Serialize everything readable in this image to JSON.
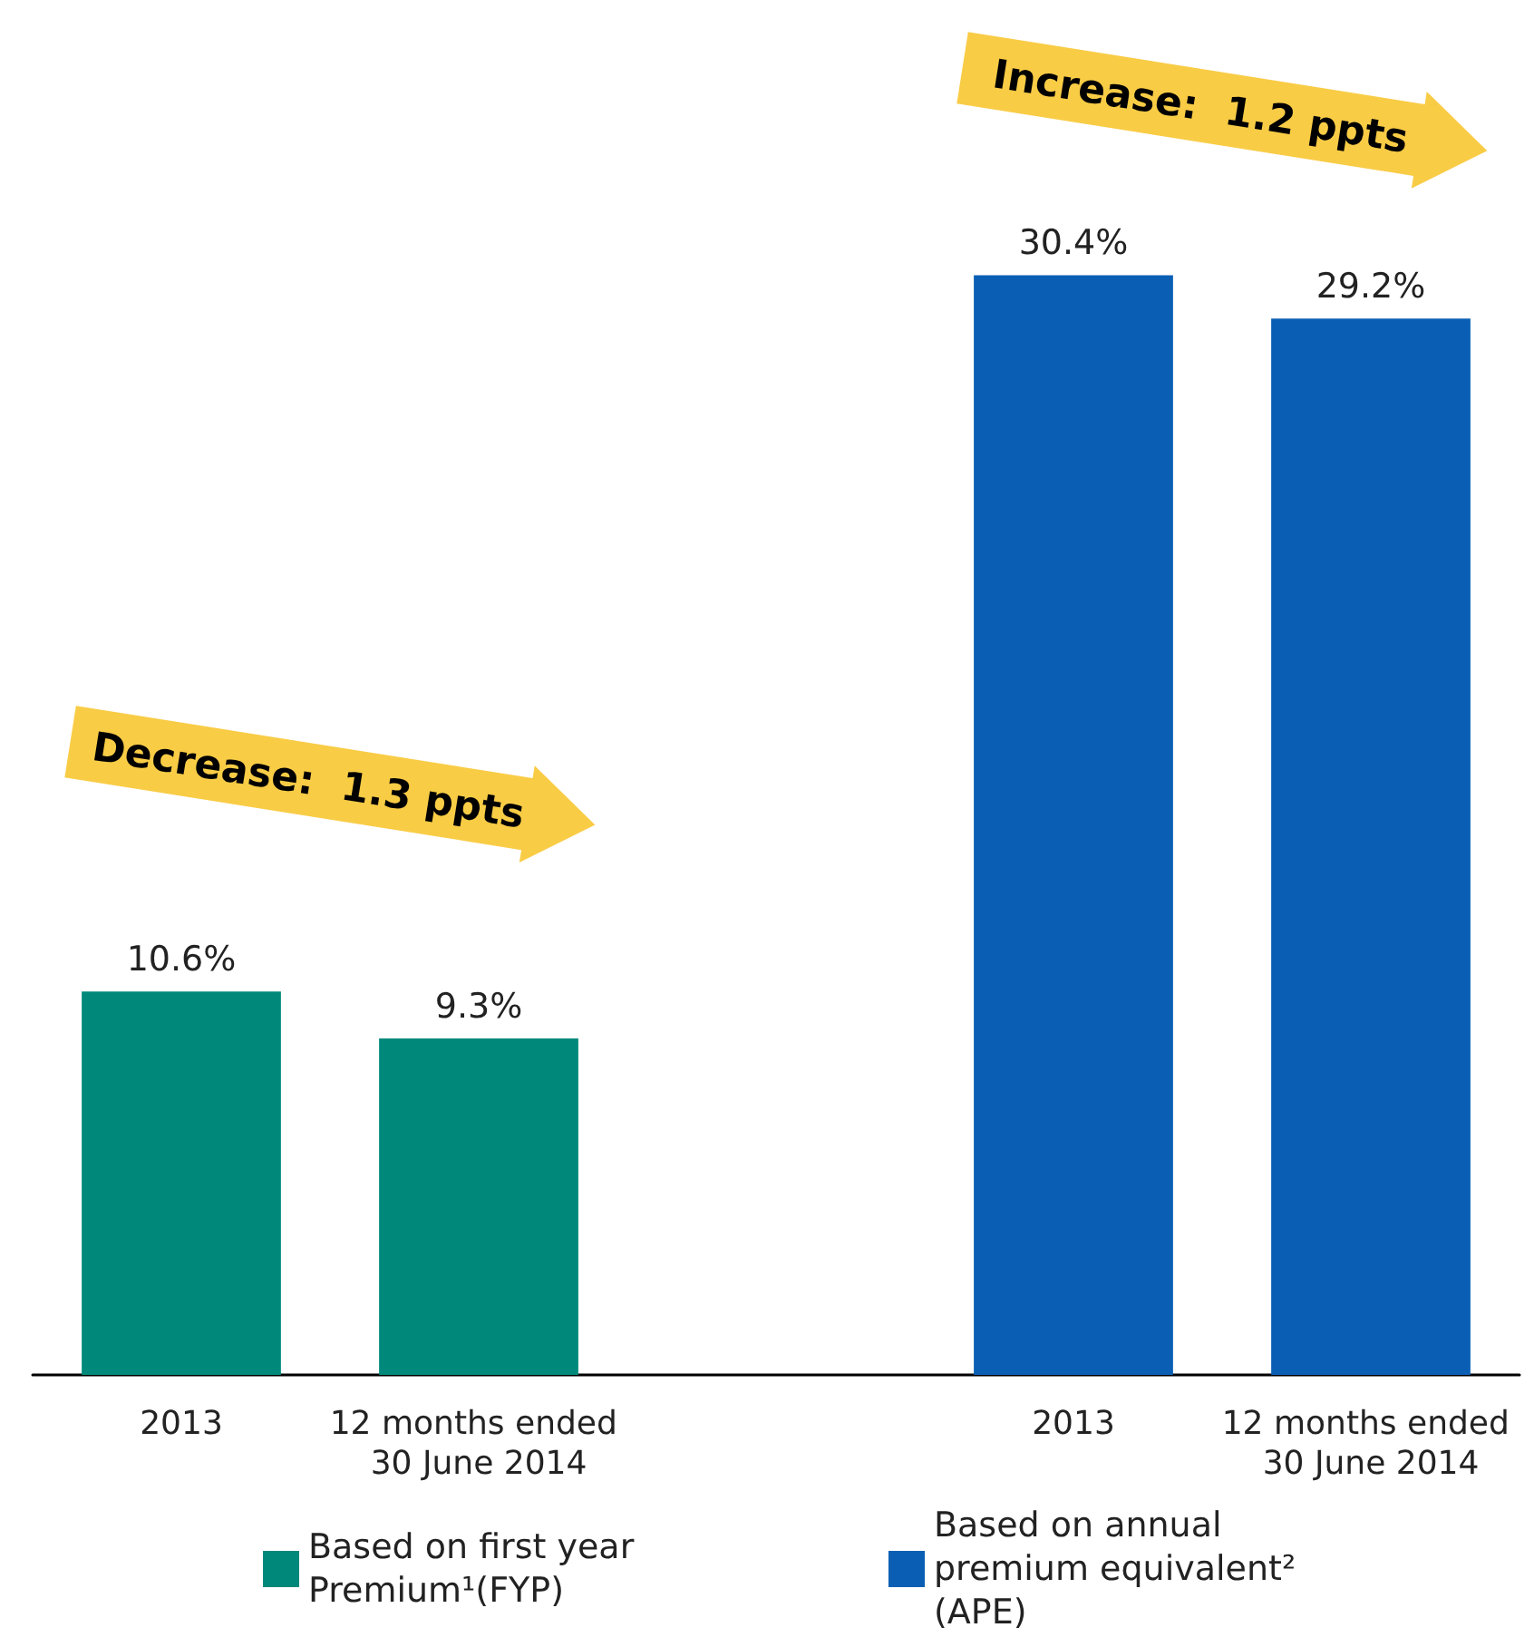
{
  "chart_data": {
    "type": "bar",
    "categories": [
      "2013",
      "12 months ended 30 June 2014",
      null,
      "2013",
      "12 months ended 30 June 2014"
    ],
    "series": [
      {
        "name": "Based on first year Premium¹(FYP)",
        "color": "#00897b",
        "values": [
          10.6,
          9.3,
          null,
          null,
          null
        ],
        "value_labels": [
          "10.6%",
          "9.3%",
          null,
          null,
          null
        ]
      },
      {
        "name": "Based on annual premium equivalent² (APE)",
        "color": "#0a5fb4",
        "values": [
          null,
          null,
          null,
          30.4,
          29.2
        ],
        "value_labels": [
          null,
          null,
          null,
          "30.4%",
          "29.2%"
        ]
      }
    ],
    "annotations": [
      "Decrease:  1.3 ppts",
      "Increase:  1.2 ppts"
    ],
    "legend": "bottom",
    "grid": false
  }
}
